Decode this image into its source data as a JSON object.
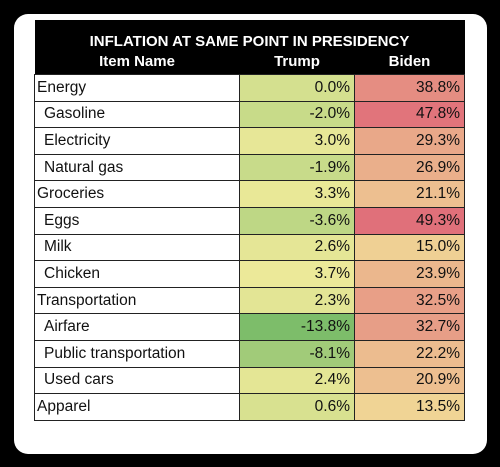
{
  "chart_data": {
    "type": "table",
    "title": "INFLATION AT SAME POINT IN PRESIDENCY",
    "columns": [
      "Item Name",
      "Trump",
      "Biden"
    ],
    "rows": [
      {
        "item": "Energy",
        "sub": false,
        "trump": "0.0%",
        "biden": "38.8%",
        "trump_value": 0.0,
        "biden_value": 38.8
      },
      {
        "item": "Gasoline",
        "sub": true,
        "trump": "-2.0%",
        "biden": "47.8%",
        "trump_value": -2.0,
        "biden_value": 47.8
      },
      {
        "item": "Electricity",
        "sub": true,
        "trump": "3.0%",
        "biden": "29.3%",
        "trump_value": 3.0,
        "biden_value": 29.3
      },
      {
        "item": "Natural gas",
        "sub": true,
        "trump": "-1.9%",
        "biden": "26.9%",
        "trump_value": -1.9,
        "biden_value": 26.9
      },
      {
        "item": "Groceries",
        "sub": false,
        "trump": "3.3%",
        "biden": "21.1%",
        "trump_value": 3.3,
        "biden_value": 21.1
      },
      {
        "item": "Eggs",
        "sub": true,
        "trump": "-3.6%",
        "biden": "49.3%",
        "trump_value": -3.6,
        "biden_value": 49.3
      },
      {
        "item": "Milk",
        "sub": true,
        "trump": "2.6%",
        "biden": "15.0%",
        "trump_value": 2.6,
        "biden_value": 15.0
      },
      {
        "item": "Chicken",
        "sub": true,
        "trump": "3.7%",
        "biden": "23.9%",
        "trump_value": 3.7,
        "biden_value": 23.9
      },
      {
        "item": "Transportation",
        "sub": false,
        "trump": "2.3%",
        "biden": "32.5%",
        "trump_value": 2.3,
        "biden_value": 32.5
      },
      {
        "item": "Airfare",
        "sub": true,
        "trump": "-13.8%",
        "biden": "32.7%",
        "trump_value": -13.8,
        "biden_value": 32.7
      },
      {
        "item": "Public transportation",
        "sub": true,
        "trump": "-8.1%",
        "biden": "22.2%",
        "trump_value": -8.1,
        "biden_value": 22.2
      },
      {
        "item": "Used cars",
        "sub": true,
        "trump": "2.4%",
        "biden": "20.9%",
        "trump_value": 2.4,
        "biden_value": 20.9
      },
      {
        "item": "Apparel",
        "sub": false,
        "trump": "0.6%",
        "biden": "13.5%",
        "trump_value": 0.6,
        "biden_value": 13.5
      }
    ],
    "color_scale": {
      "type": "heatmap",
      "low_color": "#7dbd6a",
      "mid_color": "#f4ec9c",
      "high_color": "#e0707a"
    }
  }
}
